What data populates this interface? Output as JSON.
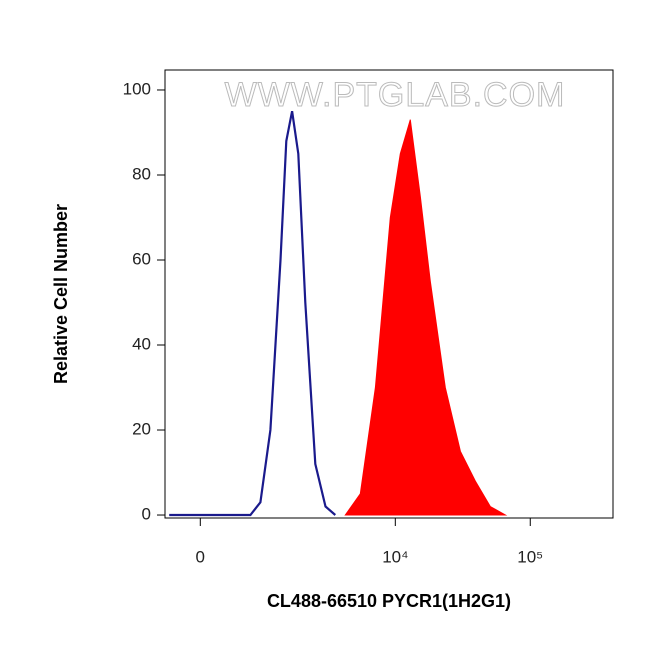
{
  "chart_data": {
    "type": "histogram",
    "watermark": "WWW.PTGLAB.COM",
    "x_label": "CL488-66510 PYCR1(1H2G1)",
    "y_label": "Relative Cell Number",
    "xscale": "biexponential",
    "xlim": [
      -460,
      410000
    ],
    "xticks": [
      0,
      {
        "value": 10000,
        "label": "10⁴"
      },
      {
        "value": 100000,
        "label": "10⁵"
      }
    ],
    "ylim": [
      -0.7,
      104.7
    ],
    "yticks": [
      0,
      20,
      40,
      60,
      80,
      100
    ],
    "series": [
      {
        "color": "#1a1a8c",
        "fill": false,
        "x": [
          -400,
          692,
          875,
          1081,
          1321,
          1477,
          1647,
          1848,
          2096,
          2510,
          3002,
          3564
        ],
        "values": [
          0,
          0,
          3,
          20,
          60,
          88,
          95,
          85,
          50,
          12,
          2,
          0
        ]
      },
      {
        "color": "#ff0000",
        "fill": true,
        "x": [
          4234,
          5492,
          7107,
          9187,
          10890,
          12920,
          15320,
          18180,
          23470,
          30360,
          39190,
          50600,
          65400
        ],
        "values": [
          0,
          5,
          30,
          70,
          85,
          93,
          75,
          55,
          30,
          15,
          8,
          2,
          0
        ]
      }
    ]
  }
}
